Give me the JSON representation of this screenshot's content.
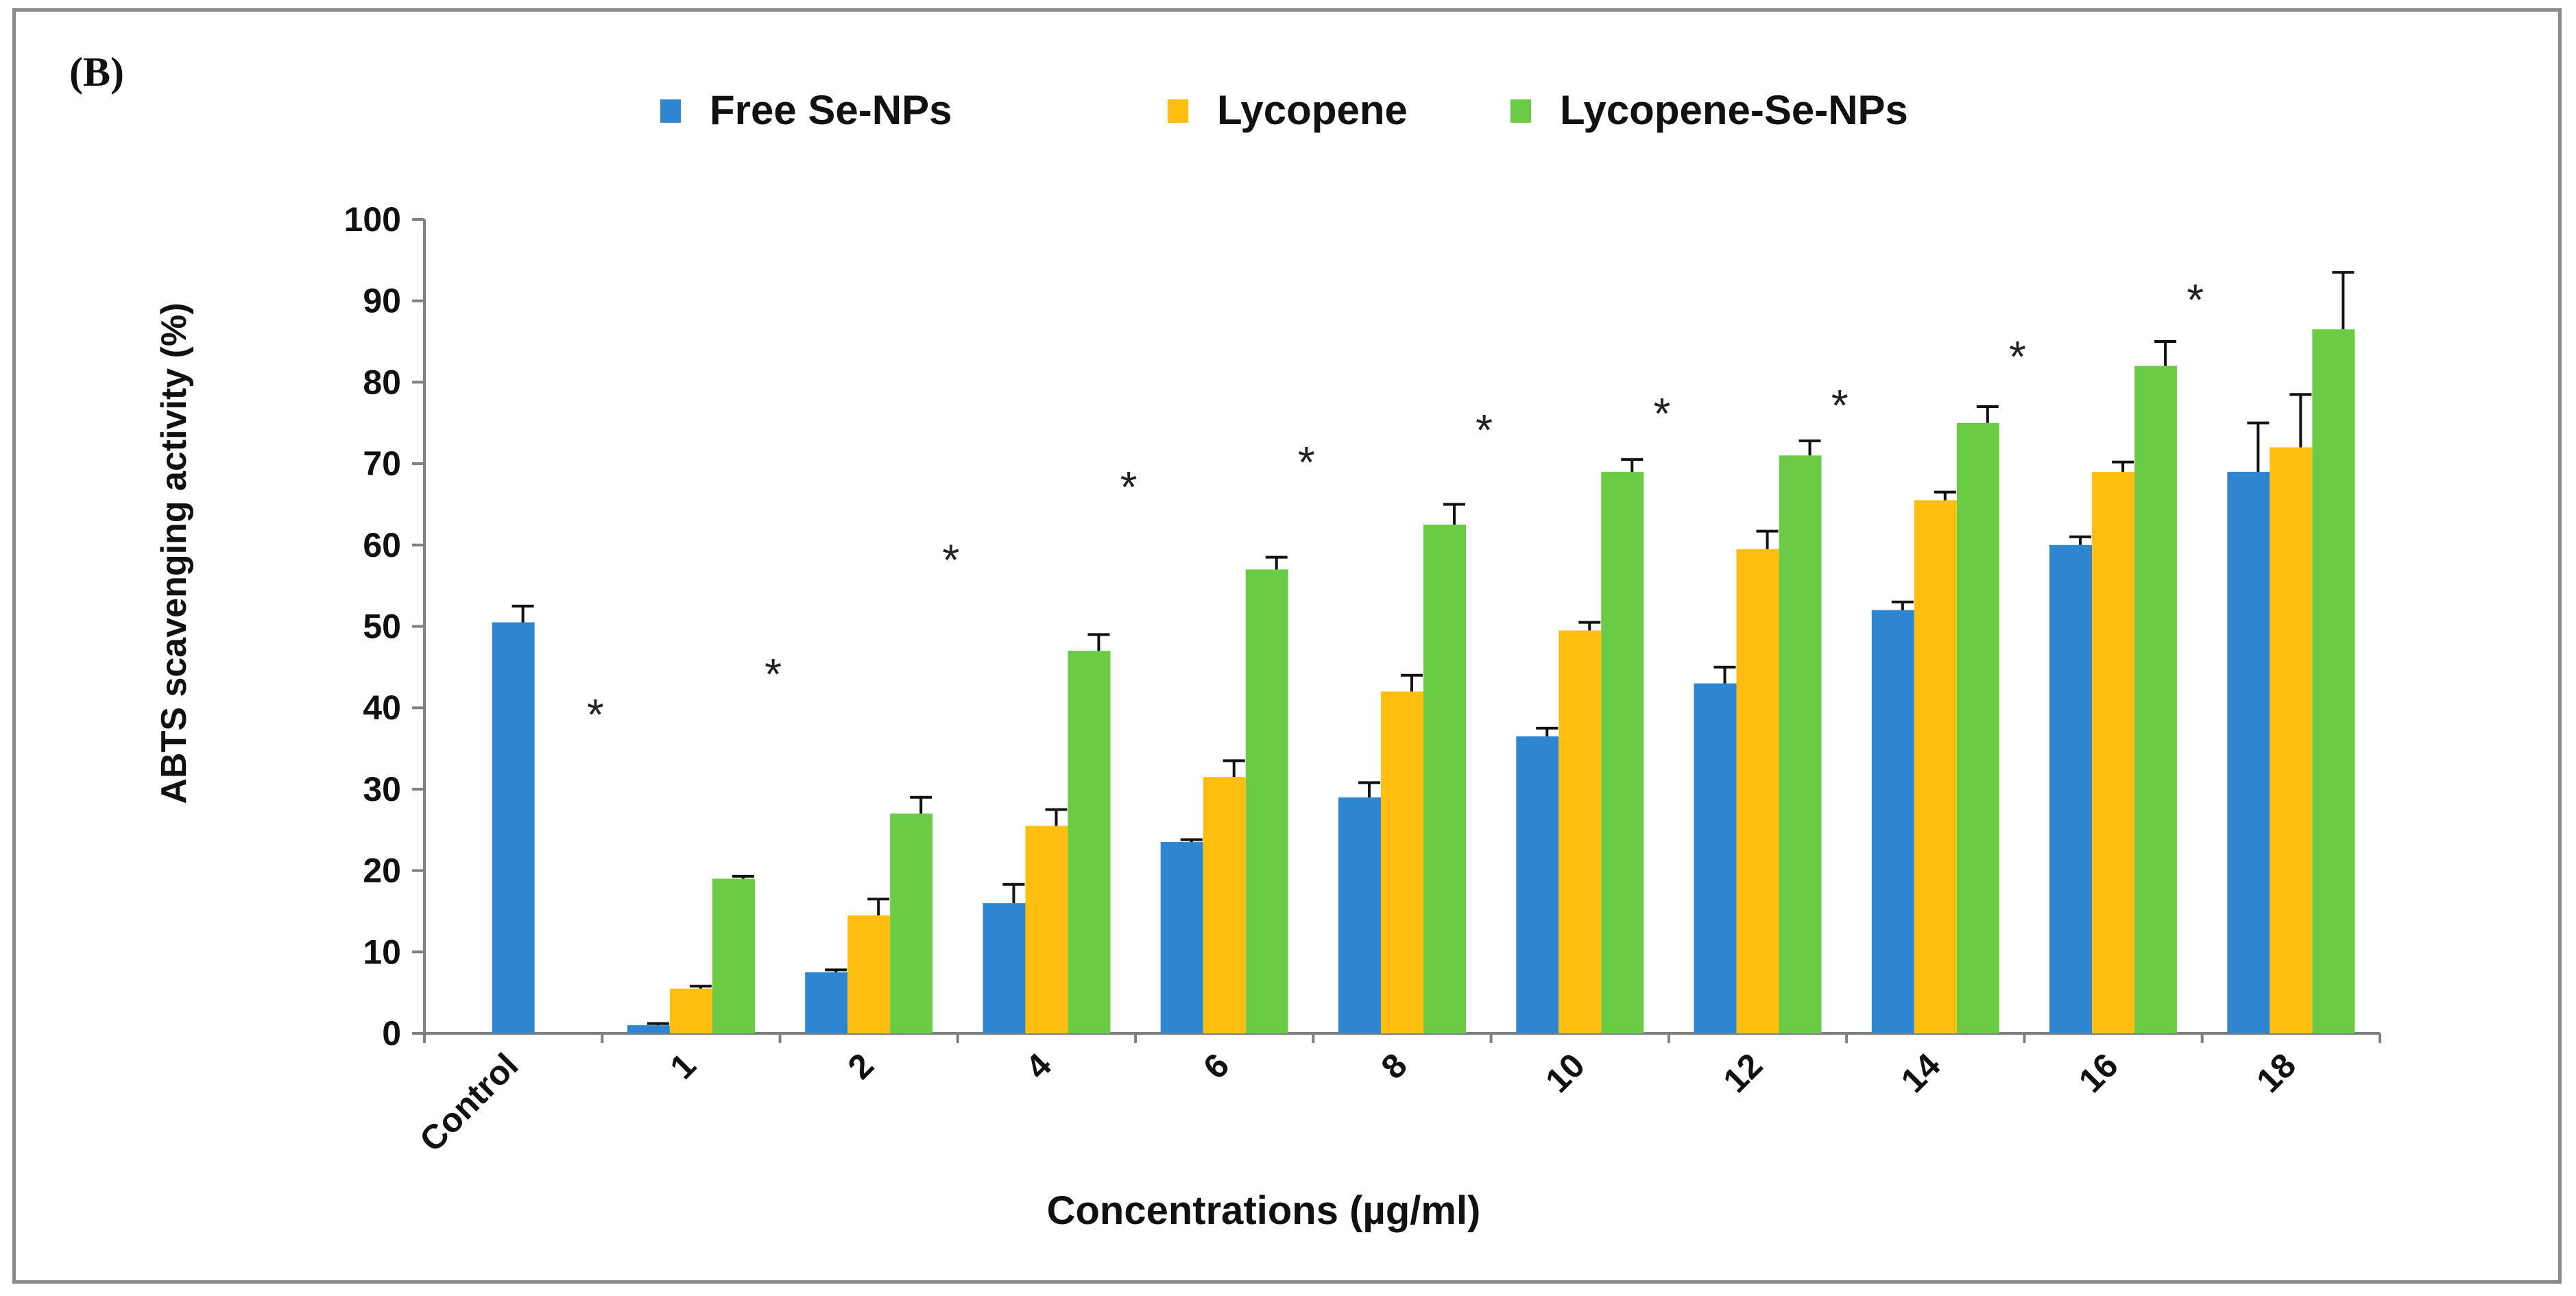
{
  "panel_label": "(B)",
  "chart_data": {
    "type": "bar",
    "title": "",
    "xlabel": "Concentrations (µg/ml)",
    "ylabel": "ABTS scavenging activity (%)",
    "ylim": [
      0,
      100
    ],
    "yticks": [
      0,
      10,
      20,
      30,
      40,
      50,
      60,
      70,
      80,
      90,
      100
    ],
    "grid": false,
    "legend_position": "top",
    "categories": [
      "Control",
      "1",
      "2",
      "4",
      "6",
      "8",
      "10",
      "12",
      "14",
      "16",
      "18"
    ],
    "series": [
      {
        "name": "Free Se-NPs",
        "color": "#2E86D1",
        "values": [
          50.5,
          1,
          7.5,
          16,
          23.5,
          29,
          36.5,
          43,
          52,
          60,
          69
        ],
        "errors": [
          2,
          0.2,
          0.3,
          2.3,
          0.3,
          1.8,
          1,
          2,
          1,
          1,
          6
        ]
      },
      {
        "name": "Lycopene",
        "color": "#FFBE10",
        "values": [
          null,
          5.5,
          14.5,
          25.5,
          31.5,
          42,
          49.5,
          59.5,
          65.5,
          69,
          72
        ],
        "errors": [
          null,
          0.3,
          2,
          2,
          2,
          2,
          1,
          2.2,
          1,
          1.2,
          6.5
        ]
      },
      {
        "name": "Lycopene-Se-NPs",
        "color": "#6CCB45",
        "values": [
          null,
          19,
          27,
          47,
          57,
          62.5,
          69,
          71,
          75,
          82,
          86.5
        ],
        "errors": [
          null,
          0.3,
          2,
          2,
          1.5,
          2.5,
          1.5,
          1.8,
          2,
          3,
          7
        ]
      }
    ],
    "annotations": [
      {
        "text": "*",
        "category": "1",
        "y": 40
      },
      {
        "text": "*",
        "category": "2",
        "y": 45
      },
      {
        "text": "*",
        "category": "4",
        "y": 59
      },
      {
        "text": "*",
        "category": "6",
        "y": 68
      },
      {
        "text": "*",
        "category": "8",
        "y": 71
      },
      {
        "text": "*",
        "category": "10",
        "y": 75
      },
      {
        "text": "*",
        "category": "12",
        "y": 77
      },
      {
        "text": "*",
        "category": "14",
        "y": 78
      },
      {
        "text": "*",
        "category": "16",
        "y": 84
      },
      {
        "text": "*",
        "category": "18",
        "y": 91
      }
    ]
  }
}
